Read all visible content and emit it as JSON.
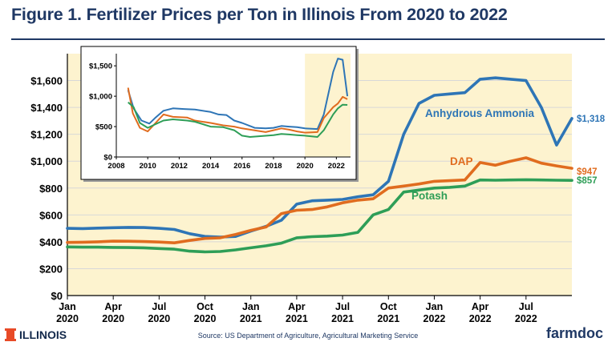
{
  "title": "Figure 1. Fertilizer Prices per Ton in Illinois From 2020 to 2022",
  "source": "Source: US Department of Agriculture, Agricultural Marketing Service",
  "logo_text": "ILLINOIS",
  "brand": "farmdoc",
  "chart_data": [
    {
      "type": "line",
      "title": "",
      "ylim": [
        0,
        1800
      ],
      "y_ticks": [
        "$0",
        "$200",
        "$400",
        "$600",
        "$800",
        "$1,000",
        "$1,200",
        "$1,400",
        "$1,600"
      ],
      "y_tick_values": [
        0,
        200,
        400,
        600,
        800,
        1000,
        1200,
        1400,
        1600
      ],
      "x_tick_months": [
        "Jan",
        "Apr",
        "Jul",
        "Oct",
        "Jan",
        "Apr",
        "Jul",
        "Oct",
        "Jan",
        "Apr",
        "Jul"
      ],
      "x_tick_years": [
        "2020",
        "2020",
        "2020",
        "2020",
        "2021",
        "2021",
        "2021",
        "2021",
        "2022",
        "2022",
        "2022"
      ],
      "x_tick_dates": [
        "2020-01",
        "2020-04",
        "2020-07",
        "2020-10",
        "2021-01",
        "2021-04",
        "2021-07",
        "2021-10",
        "2022-01",
        "2022-04",
        "2022-07"
      ],
      "highlight_background": true,
      "series": [
        {
          "name": "Anhydrous Ammonia",
          "color": "#2e75b6",
          "end_label": "$1,318",
          "points": [
            [
              "2020-01",
              500
            ],
            [
              "2020-02",
              498
            ],
            [
              "2020-03",
              502
            ],
            [
              "2020-04",
              505
            ],
            [
              "2020-05",
              507
            ],
            [
              "2020-06",
              506
            ],
            [
              "2020-07",
              500
            ],
            [
              "2020-08",
              492
            ],
            [
              "2020-09",
              460
            ],
            [
              "2020-10",
              440
            ],
            [
              "2020-11",
              435
            ],
            [
              "2020-12",
              440
            ],
            [
              "2021-01",
              480
            ],
            [
              "2021-02",
              515
            ],
            [
              "2021-03",
              560
            ],
            [
              "2021-04",
              680
            ],
            [
              "2021-05",
              705
            ],
            [
              "2021-06",
              710
            ],
            [
              "2021-07",
              715
            ],
            [
              "2021-08",
              735
            ],
            [
              "2021-09",
              750
            ],
            [
              "2021-10",
              850
            ],
            [
              "2021-11",
              1200
            ],
            [
              "2021-12",
              1430
            ],
            [
              "2022-01",
              1490
            ],
            [
              "2022-02",
              1500
            ],
            [
              "2022-03",
              1510
            ],
            [
              "2022-04",
              1610
            ],
            [
              "2022-05",
              1620
            ],
            [
              "2022-06",
              1610
            ],
            [
              "2022-07",
              1600
            ],
            [
              "2022-08",
              1400
            ],
            [
              "2022-09",
              1120
            ],
            [
              "2022-10",
              1318
            ]
          ]
        },
        {
          "name": "DAP",
          "color": "#e06c1f",
          "end_label": "$947",
          "points": [
            [
              "2020-01",
              395
            ],
            [
              "2020-02",
              397
            ],
            [
              "2020-03",
              400
            ],
            [
              "2020-04",
              405
            ],
            [
              "2020-05",
              404
            ],
            [
              "2020-06",
              402
            ],
            [
              "2020-07",
              398
            ],
            [
              "2020-08",
              392
            ],
            [
              "2020-09",
              410
            ],
            [
              "2020-10",
              425
            ],
            [
              "2020-11",
              430
            ],
            [
              "2020-12",
              455
            ],
            [
              "2021-01",
              485
            ],
            [
              "2021-02",
              510
            ],
            [
              "2021-03",
              610
            ],
            [
              "2021-04",
              635
            ],
            [
              "2021-05",
              640
            ],
            [
              "2021-06",
              660
            ],
            [
              "2021-07",
              690
            ],
            [
              "2021-08",
              710
            ],
            [
              "2021-09",
              720
            ],
            [
              "2021-10",
              800
            ],
            [
              "2021-11",
              815
            ],
            [
              "2021-12",
              830
            ],
            [
              "2022-01",
              850
            ],
            [
              "2022-02",
              855
            ],
            [
              "2022-03",
              860
            ],
            [
              "2022-04",
              990
            ],
            [
              "2022-05",
              970
            ],
            [
              "2022-06",
              1000
            ],
            [
              "2022-07",
              1025
            ],
            [
              "2022-08",
              985
            ],
            [
              "2022-09",
              965
            ],
            [
              "2022-10",
              947
            ]
          ]
        },
        {
          "name": "Potash",
          "color": "#2e9e57",
          "end_label": "$857",
          "points": [
            [
              "2020-01",
              362
            ],
            [
              "2020-02",
              360
            ],
            [
              "2020-03",
              360
            ],
            [
              "2020-04",
              358
            ],
            [
              "2020-05",
              357
            ],
            [
              "2020-06",
              355
            ],
            [
              "2020-07",
              350
            ],
            [
              "2020-08",
              345
            ],
            [
              "2020-09",
              330
            ],
            [
              "2020-10",
              325
            ],
            [
              "2020-11",
              328
            ],
            [
              "2020-12",
              340
            ],
            [
              "2021-01",
              355
            ],
            [
              "2021-02",
              370
            ],
            [
              "2021-03",
              390
            ],
            [
              "2021-04",
              430
            ],
            [
              "2021-05",
              438
            ],
            [
              "2021-06",
              442
            ],
            [
              "2021-07",
              450
            ],
            [
              "2021-08",
              470
            ],
            [
              "2021-09",
              600
            ],
            [
              "2021-10",
              640
            ],
            [
              "2021-11",
              770
            ],
            [
              "2021-12",
              785
            ],
            [
              "2022-01",
              800
            ],
            [
              "2022-02",
              805
            ],
            [
              "2022-03",
              815
            ],
            [
              "2022-04",
              860
            ],
            [
              "2022-05",
              858
            ],
            [
              "2022-06",
              860
            ],
            [
              "2022-07",
              862
            ],
            [
              "2022-08",
              860
            ],
            [
              "2022-09",
              858
            ],
            [
              "2022-10",
              857
            ]
          ]
        }
      ]
    },
    {
      "type": "line",
      "title": "",
      "role": "inset",
      "ylim": [
        0,
        1700
      ],
      "y_ticks": [
        "$0",
        "$500",
        "$1,000",
        "$1,500"
      ],
      "y_tick_values": [
        0,
        500,
        1000,
        1500
      ],
      "x_ticks": [
        "2008",
        "2010",
        "2012",
        "2014",
        "2016",
        "2018",
        "2020",
        "2022"
      ],
      "x_tick_values": [
        2008,
        2010,
        2012,
        2014,
        2016,
        2018,
        2020,
        2022
      ],
      "highlight_range": [
        2020,
        2022.9
      ],
      "series": [
        {
          "name": "Anhydrous Ammonia",
          "color": "#2e75b6",
          "points": [
            [
              2008.75,
              1100
            ],
            [
              2009.1,
              800
            ],
            [
              2009.6,
              600
            ],
            [
              2010.1,
              550
            ],
            [
              2010.5,
              650
            ],
            [
              2011,
              760
            ],
            [
              2011.6,
              800
            ],
            [
              2012.3,
              790
            ],
            [
              2013,
              780
            ],
            [
              2014,
              740
            ],
            [
              2014.5,
              700
            ],
            [
              2015,
              690
            ],
            [
              2015.5,
              600
            ],
            [
              2016,
              560
            ],
            [
              2016.8,
              480
            ],
            [
              2017.5,
              470
            ],
            [
              2018,
              480
            ],
            [
              2018.5,
              510
            ],
            [
              2019,
              500
            ],
            [
              2019.5,
              490
            ],
            [
              2020,
              470
            ],
            [
              2020.8,
              460
            ],
            [
              2021.2,
              700
            ],
            [
              2021.8,
              1400
            ],
            [
              2022.1,
              1620
            ],
            [
              2022.4,
              1600
            ],
            [
              2022.7,
              1000
            ]
          ]
        },
        {
          "name": "DAP",
          "color": "#e06c1f",
          "points": [
            [
              2008.75,
              1140
            ],
            [
              2009.05,
              720
            ],
            [
              2009.5,
              480
            ],
            [
              2010,
              420
            ],
            [
              2010.5,
              560
            ],
            [
              2011,
              700
            ],
            [
              2011.6,
              660
            ],
            [
              2012.5,
              650
            ],
            [
              2013,
              600
            ],
            [
              2014,
              560
            ],
            [
              2014.8,
              520
            ],
            [
              2015.5,
              500
            ],
            [
              2016,
              470
            ],
            [
              2017,
              430
            ],
            [
              2017.5,
              410
            ],
            [
              2018,
              440
            ],
            [
              2018.5,
              470
            ],
            [
              2019,
              450
            ],
            [
              2019.5,
              420
            ],
            [
              2020,
              400
            ],
            [
              2020.8,
              410
            ],
            [
              2021.2,
              640
            ],
            [
              2021.8,
              820
            ],
            [
              2022.1,
              880
            ],
            [
              2022.4,
              990
            ],
            [
              2022.7,
              950
            ]
          ]
        },
        {
          "name": "Potash",
          "color": "#2e9e57",
          "points": [
            [
              2008.75,
              900
            ],
            [
              2009.1,
              820
            ],
            [
              2009.5,
              560
            ],
            [
              2010,
              480
            ],
            [
              2010.5,
              540
            ],
            [
              2011,
              600
            ],
            [
              2011.6,
              620
            ],
            [
              2012.5,
              600
            ],
            [
              2013,
              580
            ],
            [
              2014,
              500
            ],
            [
              2014.8,
              490
            ],
            [
              2015.5,
              440
            ],
            [
              2016,
              350
            ],
            [
              2016.5,
              330
            ],
            [
              2017,
              340
            ],
            [
              2018,
              360
            ],
            [
              2018.5,
              380
            ],
            [
              2019,
              370
            ],
            [
              2019.5,
              360
            ],
            [
              2020,
              350
            ],
            [
              2020.8,
              330
            ],
            [
              2021.2,
              440
            ],
            [
              2021.8,
              700
            ],
            [
              2022.1,
              800
            ],
            [
              2022.4,
              860
            ],
            [
              2022.7,
              857
            ]
          ]
        }
      ]
    }
  ]
}
